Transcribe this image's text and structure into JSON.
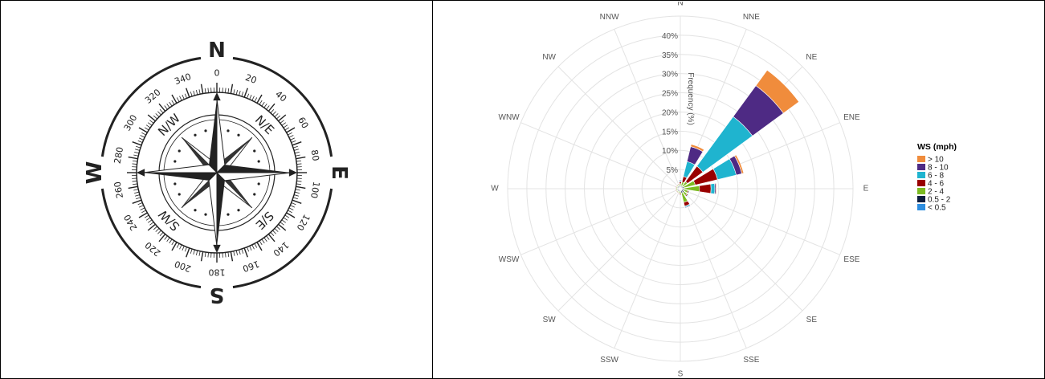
{
  "compass": {
    "cardinals": [
      "N",
      "E",
      "S",
      "W"
    ],
    "intercardinals": [
      "N/E",
      "S/E",
      "S/W",
      "N/W"
    ],
    "degree_labels": [
      "0",
      "20",
      "40",
      "60",
      "80",
      "100",
      "120",
      "140",
      "160",
      "180",
      "200",
      "220",
      "240",
      "260",
      "280",
      "300",
      "320",
      "340"
    ]
  },
  "chart_data": {
    "type": "wind_rose",
    "directions": [
      "N",
      "NNE",
      "NE",
      "ENE",
      "E",
      "ESE",
      "SE",
      "SSE",
      "S",
      "SSW",
      "SW",
      "WSW",
      "W",
      "WNW",
      "NW",
      "NNW"
    ],
    "radial_axis": {
      "title": "Frequency (%)",
      "ticks": [
        "5%",
        "10%",
        "15%",
        "20%",
        "25%",
        "30%",
        "35%",
        "40%"
      ],
      "max": 45,
      "step": 5
    },
    "legend": {
      "title": "WS (mph)",
      "position": "right"
    },
    "series": [
      {
        "name": "< 0.5",
        "color": "#2e8ee0",
        "values": [
          0.3,
          0.3,
          0.3,
          0.3,
          0.3,
          0.3,
          0.5,
          0.5,
          0.3,
          0.3,
          0.3,
          0.3,
          0.3,
          0.3,
          0.3,
          0.3
        ]
      },
      {
        "name": "0.5 - 2",
        "color": "#0d1d3f",
        "values": [
          0.5,
          0.5,
          0.5,
          0.7,
          0.7,
          0.7,
          0.7,
          0.7,
          0.5,
          0.5,
          0.5,
          0.5,
          0.5,
          0.5,
          0.5,
          0.5
        ]
      },
      {
        "name": "2 - 4",
        "color": "#7cbb22",
        "values": [
          0.5,
          1.0,
          1.5,
          3.0,
          4.0,
          1.0,
          1.0,
          2.5,
          0.5,
          0.3,
          0.3,
          0.3,
          0.3,
          0.3,
          0.3,
          0.3
        ]
      },
      {
        "name": "4 - 6",
        "color": "#990000",
        "values": [
          0.5,
          1.5,
          5.0,
          6.0,
          3.0,
          0.3,
          0.3,
          1.0,
          0.3,
          0.2,
          0.2,
          0.2,
          0.2,
          0.2,
          0.2,
          0.2
        ]
      },
      {
        "name": "6 - 8",
        "color": "#1fb4cf",
        "values": [
          0.3,
          4.0,
          16.0,
          5.0,
          1.0,
          0.2,
          0.2,
          0.3,
          0.2,
          0.1,
          0.1,
          0.1,
          0.1,
          0.1,
          0.1,
          0.1
        ]
      },
      {
        "name": "8 - 10",
        "color": "#4e2a84",
        "values": [
          0.2,
          4.0,
          10.0,
          1.5,
          0.3,
          0.1,
          0.1,
          0.2,
          0.1,
          0.0,
          0.0,
          0.0,
          0.0,
          0.0,
          0.0,
          0.1
        ]
      },
      {
        "name": "> 10",
        "color": "#f08c3c",
        "values": [
          0.1,
          0.6,
          5.0,
          0.5,
          0.2,
          0.0,
          0.0,
          0.1,
          0.0,
          0.0,
          0.0,
          0.0,
          0.0,
          0.0,
          0.0,
          0.0
        ]
      }
    ],
    "legend_order": [
      "> 10",
      "8 - 10",
      "6 - 8",
      "4 - 6",
      "2 - 4",
      "0.5 - 2",
      "< 0.5"
    ],
    "grid": true
  }
}
